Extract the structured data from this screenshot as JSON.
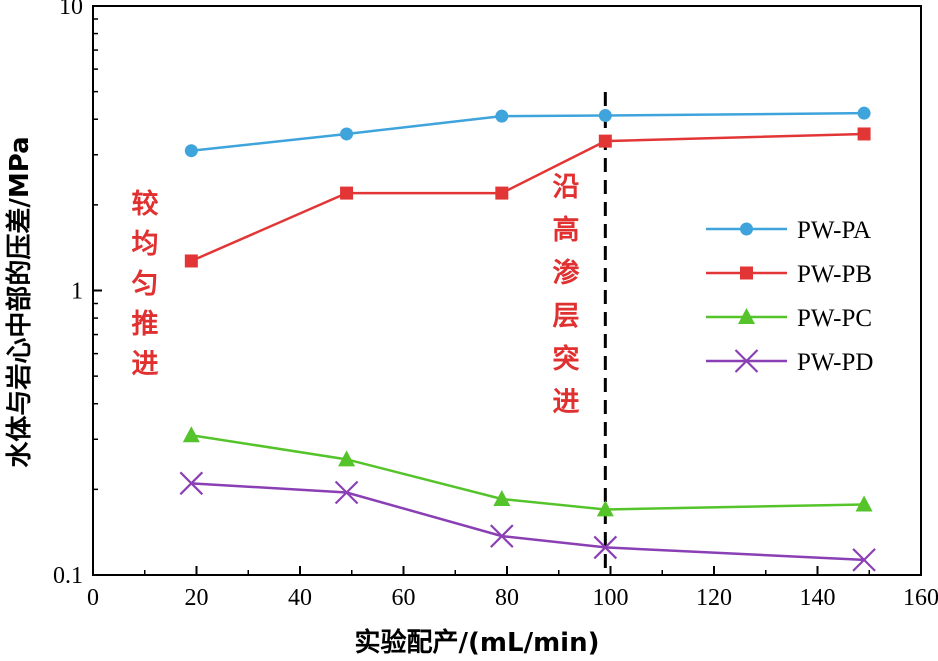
{
  "chart_data": {
    "type": "line",
    "title": "",
    "xlabel": "实验配产/(mL/min)",
    "ylabel": "水体与岩心中部的压差/MPa",
    "x_scale": "linear",
    "y_scale": "log",
    "xlim": [
      0,
      160
    ],
    "ylim": [
      0.1,
      10
    ],
    "xticks": [
      0,
      20,
      40,
      60,
      80,
      100,
      120,
      140,
      160
    ],
    "xtick_labels": [
      "0",
      "20",
      "40",
      "60",
      "80",
      "100",
      "120",
      "140",
      "160"
    ],
    "yticks": [
      0.1,
      1,
      10
    ],
    "ytick_labels": [
      "0.1",
      "1",
      "10"
    ],
    "grid": false,
    "legend_position": "right",
    "x": [
      19,
      49,
      79,
      99,
      149
    ],
    "series": [
      {
        "name": "PW-PA",
        "color": "#3fa4dc",
        "marker": "circle",
        "values": [
          3.1,
          3.55,
          4.1,
          4.12,
          4.2
        ]
      },
      {
        "name": "PW-PB",
        "color": "#e23636",
        "marker": "square",
        "values": [
          1.27,
          2.2,
          2.2,
          3.35,
          3.55
        ]
      },
      {
        "name": "PW-PC",
        "color": "#55c42a",
        "marker": "triangle",
        "values": [
          0.31,
          0.255,
          0.185,
          0.17,
          0.177
        ]
      },
      {
        "name": "PW-PD",
        "color": "#8a3fb4",
        "marker": "x",
        "values": [
          0.21,
          0.195,
          0.137,
          0.125,
          0.113
        ]
      }
    ],
    "vline": {
      "x": 99,
      "style": "dashed",
      "color": "#000000"
    },
    "annotations": [
      {
        "id": "uniform",
        "chars": [
          "较",
          "均",
          "匀",
          "推",
          "进"
        ],
        "color": "#e03030"
      },
      {
        "id": "breakthrough",
        "chars": [
          "沿",
          "高",
          "渗",
          "层",
          "突",
          "进"
        ],
        "color": "#e03030"
      }
    ]
  }
}
